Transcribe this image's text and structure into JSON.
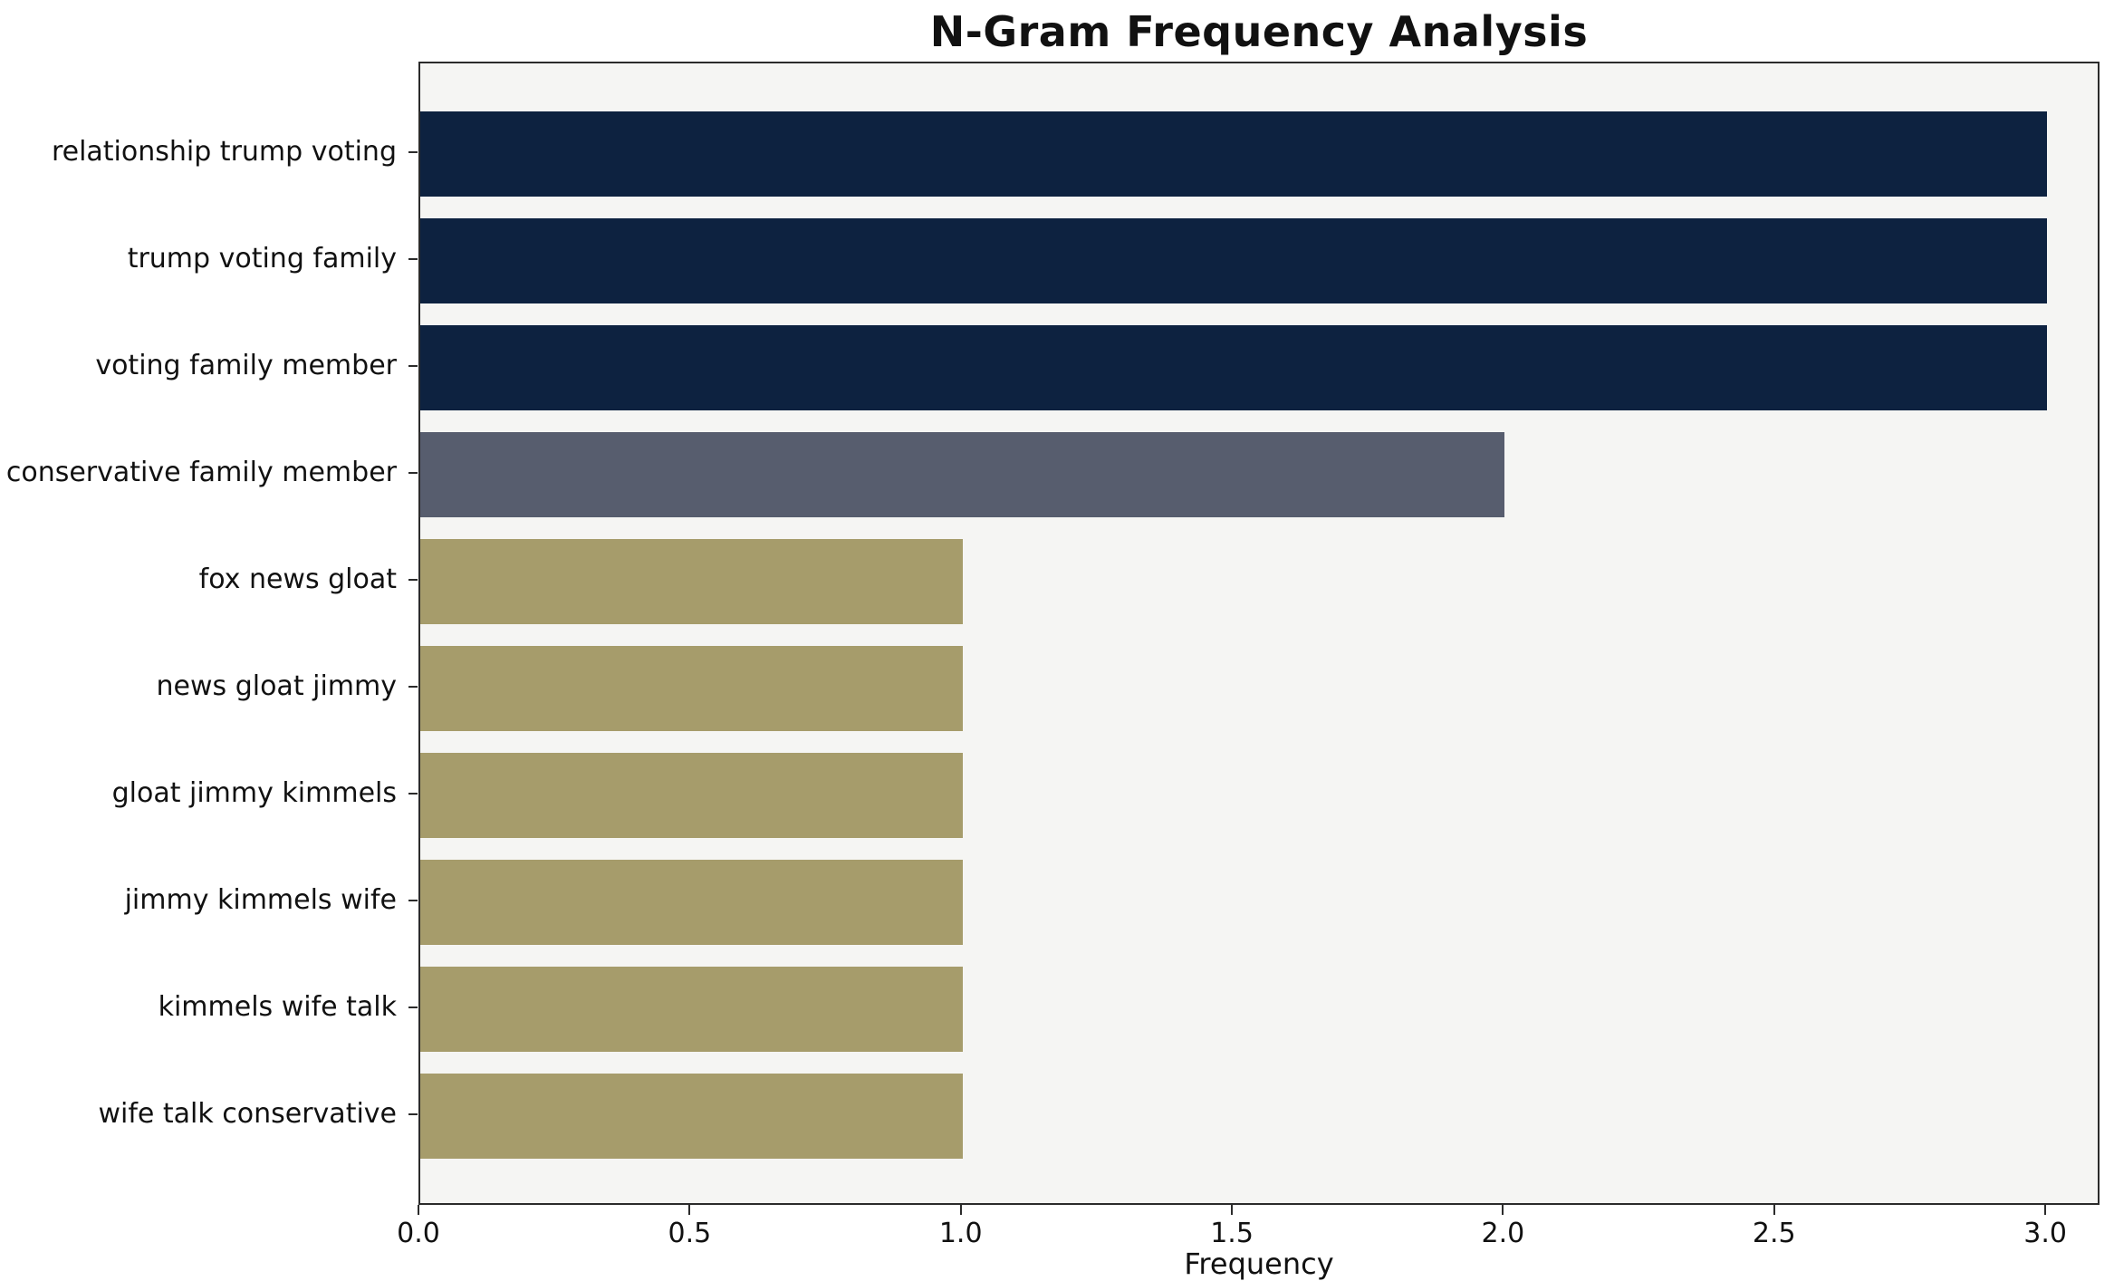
{
  "chart_data": {
    "type": "bar",
    "orientation": "horizontal",
    "title": "N-Gram Frequency Analysis",
    "xlabel": "Frequency",
    "ylabel": "",
    "categories": [
      "relationship trump voting",
      "trump voting family",
      "voting family member",
      "conservative family member",
      "fox news gloat",
      "news gloat jimmy",
      "gloat jimmy kimmels",
      "jimmy kimmels wife",
      "kimmels wife talk",
      "wife talk conservative"
    ],
    "values": [
      3,
      3,
      3,
      2,
      1,
      1,
      1,
      1,
      1,
      1
    ],
    "bar_colors": [
      "#0d2240",
      "#0d2240",
      "#0d2240",
      "#575d6e",
      "#a69c6b",
      "#a69c6b",
      "#a69c6b",
      "#a69c6b",
      "#a69c6b",
      "#a69c6b"
    ],
    "xlim": [
      0,
      3.1
    ],
    "xticks": [
      0.0,
      0.5,
      1.0,
      1.5,
      2.0,
      2.5,
      3.0
    ],
    "xtick_labels": [
      "0.0",
      "0.5",
      "1.0",
      "1.5",
      "2.0",
      "2.5",
      "3.0"
    ],
    "plot_bg": "#f5f5f3",
    "grid": false,
    "legend": "none"
  }
}
